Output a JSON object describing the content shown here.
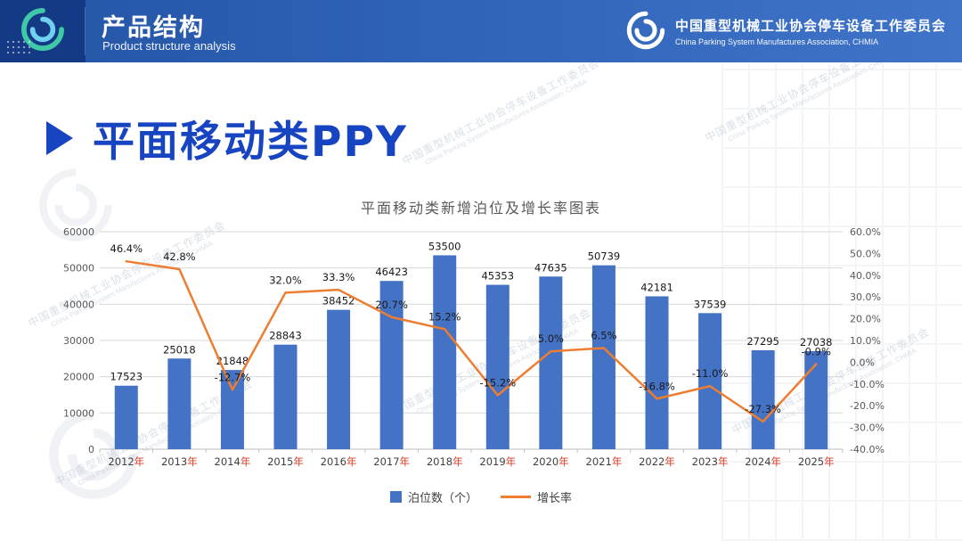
{
  "header": {
    "title": "产品结构",
    "subtitle": "Product structure analysis",
    "org_cn": "中国重型机械工业协会停车设备工作委员会",
    "org_en": "China Parking System Manufactures Association, CHMIA"
  },
  "watermark": {
    "cn": "中国重型机械工业协会停车设备工作委员会",
    "en": "China Parking System Manufactures Association, CHMIA"
  },
  "page": {
    "title": "平面移动类PPY"
  },
  "colors": {
    "bar": "#4472C4",
    "line": "#ED7D31",
    "header_blue": "#2f63b8",
    "title_blue": "#1744c0",
    "year_suffix_red": "#d9402e",
    "grid": "#d9d9d9",
    "axis_text": "#595959",
    "label_text": "#1a1a1a"
  },
  "chart_data": {
    "type": "bar",
    "combo": "bar+line",
    "title": "平面移动类新增泊位及增长率图表",
    "categories": [
      "2012年",
      "2013年",
      "2014年",
      "2015年",
      "2016年",
      "2017年",
      "2018年",
      "2019年",
      "2020年",
      "2021年",
      "2022年",
      "2023年",
      "2024年",
      "2025年"
    ],
    "series": [
      {
        "name": "泊位数（个）",
        "type": "bar",
        "color": "#4472C4",
        "values": [
          17523,
          25018,
          21848,
          28843,
          38452,
          46423,
          53500,
          45353,
          47635,
          50739,
          42181,
          37539,
          27295,
          27038
        ]
      },
      {
        "name": "增长率",
        "type": "line",
        "color": "#ED7D31",
        "values": [
          46.4,
          42.8,
          -12.7,
          32.0,
          33.3,
          20.7,
          15.2,
          -15.2,
          5.0,
          6.5,
          -16.8,
          -11.0,
          -27.3,
          -0.9
        ]
      }
    ],
    "left_axis": {
      "min": 0,
      "max": 60000,
      "step": 10000
    },
    "right_axis": {
      "min": -40,
      "max": 60,
      "step": 10,
      "suffix": "%"
    },
    "grid": true,
    "legend_position": "bottom"
  }
}
